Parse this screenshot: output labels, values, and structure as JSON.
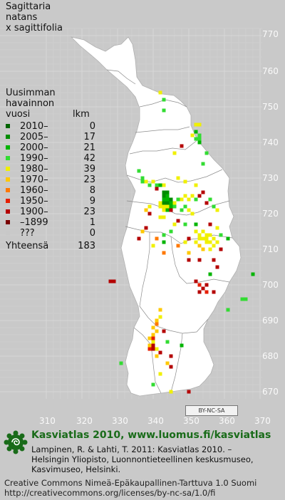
{
  "title": [
    "Sagittaria",
    "natans",
    "x sagittifolia"
  ],
  "legend": {
    "heading": [
      "Uusimman",
      "havainnon"
    ],
    "col_year": "vuosi",
    "col_count": "lkm",
    "rows": [
      {
        "label": "2010–",
        "count": "0",
        "color": "#006400"
      },
      {
        "label": "2005–",
        "count": "17",
        "color": "#008c00"
      },
      {
        "label": "2000–",
        "count": "21",
        "color": "#00b400"
      },
      {
        "label": "1990–",
        "count": "42",
        "color": "#32dc32"
      },
      {
        "label": "1980–",
        "count": "39",
        "color": "#f0f000"
      },
      {
        "label": "1970–",
        "count": "23",
        "color": "#ffc800"
      },
      {
        "label": "1960–",
        "count": "8",
        "color": "#ff7800"
      },
      {
        "label": "1950–",
        "count": "9",
        "color": "#e61e00"
      },
      {
        "label": "1900–",
        "count": "23",
        "color": "#b40000"
      },
      {
        "label": "–1899",
        "count": "1",
        "color": "#7a0000"
      },
      {
        "label": "???",
        "count": "0",
        "color": "#c8c8c8"
      }
    ],
    "total_label": "Yhteensä",
    "total_count": "183"
  },
  "axis": {
    "y_ticks": [
      "770",
      "760",
      "750",
      "740",
      "730",
      "720",
      "710",
      "700",
      "690",
      "680",
      "670"
    ],
    "x_ticks": [
      "310",
      "320",
      "330",
      "340",
      "350",
      "360",
      "370"
    ]
  },
  "license_badge": "BY-NC-SA",
  "footer": {
    "title": "Kasviatlas 2010, www.luomus.fi/kasviatlas",
    "citation": [
      "Lampinen, R. & Lahti, T. 2011: Kasviatlas 2010. –",
      "Helsingin Yliopisto, Luonnontieteellinen keskusmuseo,",
      "Kasvimuseo, Helsinki."
    ],
    "license": [
      "Creative Commons Nimeä-Epäkaupallinen-Tarttuva 1.0 Suomi",
      "http://creativecommons.org/licenses/by-nc-sa/1.0/fi"
    ]
  },
  "colors": {
    "land": "#ffffff",
    "sea": "#c9c9c9",
    "grid": "#e6e6e6",
    "province": "#8c8c8c",
    "brand": "#196b19"
  },
  "observations": [
    {
      "e": 342,
      "n": 754,
      "c": 4
    },
    {
      "e": 343,
      "n": 752,
      "c": 3
    },
    {
      "e": 343,
      "n": 749,
      "c": 3
    },
    {
      "e": 352,
      "n": 745,
      "c": 4
    },
    {
      "e": 353,
      "n": 745,
      "c": 4
    },
    {
      "e": 352,
      "n": 743,
      "c": 2
    },
    {
      "e": 353,
      "n": 742,
      "c": 3
    },
    {
      "e": 352,
      "n": 741,
      "c": 3
    },
    {
      "e": 353,
      "n": 741,
      "c": 3
    },
    {
      "e": 353,
      "n": 740,
      "c": 2
    },
    {
      "e": 351,
      "n": 742,
      "c": 4
    },
    {
      "e": 348,
      "n": 739,
      "c": 8
    },
    {
      "e": 346,
      "n": 737,
      "c": 4
    },
    {
      "e": 355,
      "n": 737,
      "c": 3
    },
    {
      "e": 354,
      "n": 734,
      "c": 3
    },
    {
      "e": 336,
      "n": 732,
      "c": 3
    },
    {
      "e": 337,
      "n": 730,
      "c": 3
    },
    {
      "e": 337,
      "n": 729,
      "c": 3
    },
    {
      "e": 338,
      "n": 729,
      "c": 4
    },
    {
      "e": 339,
      "n": 728,
      "c": 3
    },
    {
      "e": 340,
      "n": 729,
      "c": 4
    },
    {
      "e": 341,
      "n": 728,
      "c": 3
    },
    {
      "e": 342,
      "n": 728,
      "c": 2
    },
    {
      "e": 343,
      "n": 728,
      "c": 4
    },
    {
      "e": 347,
      "n": 730,
      "c": 4
    },
    {
      "e": 349,
      "n": 729,
      "c": 4
    },
    {
      "e": 352,
      "n": 728,
      "c": 4
    },
    {
      "e": 341,
      "n": 727,
      "c": 8
    },
    {
      "e": 343,
      "n": 726,
      "c": 1
    },
    {
      "e": 344,
      "n": 726,
      "c": 1
    },
    {
      "e": 343,
      "n": 725,
      "c": 1
    },
    {
      "e": 344,
      "n": 725,
      "c": 2
    },
    {
      "e": 343,
      "n": 724,
      "c": 2
    },
    {
      "e": 344,
      "n": 724,
      "c": 2
    },
    {
      "e": 345,
      "n": 724,
      "c": 1
    },
    {
      "e": 342,
      "n": 723,
      "c": 4
    },
    {
      "e": 343,
      "n": 723,
      "c": 1
    },
    {
      "e": 344,
      "n": 723,
      "c": 1
    },
    {
      "e": 345,
      "n": 723,
      "c": 2
    },
    {
      "e": 346,
      "n": 723,
      "c": 4
    },
    {
      "e": 342,
      "n": 722,
      "c": 4
    },
    {
      "e": 343,
      "n": 722,
      "c": 4
    },
    {
      "e": 344,
      "n": 722,
      "c": 4
    },
    {
      "e": 345,
      "n": 722,
      "c": 2
    },
    {
      "e": 346,
      "n": 722,
      "c": 3
    },
    {
      "e": 343,
      "n": 721,
      "c": 4
    },
    {
      "e": 344,
      "n": 721,
      "c": 2
    },
    {
      "e": 345,
      "n": 721,
      "c": 8
    },
    {
      "e": 339,
      "n": 722,
      "c": 4
    },
    {
      "e": 339,
      "n": 720,
      "c": 8
    },
    {
      "e": 342,
      "n": 719,
      "c": 4
    },
    {
      "e": 343,
      "n": 719,
      "c": 4
    },
    {
      "e": 338,
      "n": 721,
      "c": 5
    },
    {
      "e": 348,
      "n": 721,
      "c": 3
    },
    {
      "e": 349,
      "n": 722,
      "c": 3
    },
    {
      "e": 350,
      "n": 721,
      "c": 4
    },
    {
      "e": 351,
      "n": 720,
      "c": 4
    },
    {
      "e": 347,
      "n": 724,
      "c": 3
    },
    {
      "e": 348,
      "n": 724,
      "c": 4
    },
    {
      "e": 349,
      "n": 725,
      "c": 4
    },
    {
      "e": 350,
      "n": 724,
      "c": 4
    },
    {
      "e": 351,
      "n": 725,
      "c": 4
    },
    {
      "e": 352,
      "n": 724,
      "c": 3
    },
    {
      "e": 353,
      "n": 725,
      "c": 8
    },
    {
      "e": 354,
      "n": 726,
      "c": 8
    },
    {
      "e": 355,
      "n": 723,
      "c": 8
    },
    {
      "e": 356,
      "n": 724,
      "c": 3
    },
    {
      "e": 357,
      "n": 722,
      "c": 3
    },
    {
      "e": 358,
      "n": 721,
      "c": 4
    },
    {
      "e": 352,
      "n": 717,
      "c": 2
    },
    {
      "e": 356,
      "n": 717,
      "c": 8
    },
    {
      "e": 347,
      "n": 718,
      "c": 8
    },
    {
      "e": 346,
      "n": 717,
      "c": 4
    },
    {
      "e": 352,
      "n": 715,
      "c": 4
    },
    {
      "e": 353,
      "n": 714,
      "c": 4
    },
    {
      "e": 354,
      "n": 715,
      "c": 4
    },
    {
      "e": 355,
      "n": 714,
      "c": 4
    },
    {
      "e": 353,
      "n": 713,
      "c": 4
    },
    {
      "e": 354,
      "n": 713,
      "c": 4
    },
    {
      "e": 355,
      "n": 713,
      "c": 4
    },
    {
      "e": 356,
      "n": 714,
      "c": 4
    },
    {
      "e": 357,
      "n": 713,
      "c": 4
    },
    {
      "e": 355,
      "n": 712,
      "c": 4
    },
    {
      "e": 356,
      "n": 712,
      "c": 4
    },
    {
      "e": 352,
      "n": 712,
      "c": 4
    },
    {
      "e": 353,
      "n": 711,
      "c": 5
    },
    {
      "e": 354,
      "n": 710,
      "c": 5
    },
    {
      "e": 357,
      "n": 711,
      "c": 4
    },
    {
      "e": 358,
      "n": 712,
      "c": 4
    },
    {
      "e": 350,
      "n": 713,
      "c": 8
    },
    {
      "e": 349,
      "n": 712,
      "c": 4
    },
    {
      "e": 358,
      "n": 716,
      "c": 4
    },
    {
      "e": 359,
      "n": 714,
      "c": 3
    },
    {
      "e": 361,
      "n": 713,
      "c": 2
    },
    {
      "e": 359,
      "n": 710,
      "c": 8
    },
    {
      "e": 356,
      "n": 710,
      "c": 4
    },
    {
      "e": 350,
      "n": 709,
      "c": 5
    },
    {
      "e": 347,
      "n": 711,
      "c": 6
    },
    {
      "e": 345,
      "n": 715,
      "c": 3
    },
    {
      "e": 343,
      "n": 714,
      "c": 3
    },
    {
      "e": 341,
      "n": 713,
      "c": 6
    },
    {
      "e": 338,
      "n": 716,
      "c": 8
    },
    {
      "e": 337,
      "n": 715,
      "c": 5
    },
    {
      "e": 336,
      "n": 713,
      "c": 8
    },
    {
      "e": 340,
      "n": 711,
      "c": 4
    },
    {
      "e": 343,
      "n": 709,
      "c": 6
    },
    {
      "e": 343,
      "n": 712,
      "c": 2
    },
    {
      "e": 349,
      "n": 717,
      "c": 3
    },
    {
      "e": 357,
      "n": 707,
      "c": 8
    },
    {
      "e": 358,
      "n": 705,
      "c": 8
    },
    {
      "e": 353,
      "n": 707,
      "c": 8
    },
    {
      "e": 350,
      "n": 707,
      "c": 8
    },
    {
      "e": 356,
      "n": 703,
      "c": 2
    },
    {
      "e": 352,
      "n": 701,
      "c": 8
    },
    {
      "e": 353,
      "n": 700,
      "c": 7
    },
    {
      "e": 354,
      "n": 699,
      "c": 8
    },
    {
      "e": 355,
      "n": 698,
      "c": 7
    },
    {
      "e": 353,
      "n": 698,
      "c": 8
    },
    {
      "e": 355,
      "n": 700,
      "c": 8
    },
    {
      "e": 357,
      "n": 698,
      "c": 8
    },
    {
      "e": 368,
      "n": 703,
      "c": 2
    },
    {
      "e": 365,
      "n": 696,
      "c": 3
    },
    {
      "e": 366,
      "n": 696,
      "c": 3
    },
    {
      "e": 361,
      "n": 693,
      "c": 3
    },
    {
      "e": 328,
      "n": 701,
      "c": 8
    },
    {
      "e": 329,
      "n": 701,
      "c": 8
    },
    {
      "e": 342,
      "n": 693,
      "c": 5
    },
    {
      "e": 342,
      "n": 691,
      "c": 4
    },
    {
      "e": 341,
      "n": 690,
      "c": 5
    },
    {
      "e": 341,
      "n": 689,
      "c": 6
    },
    {
      "e": 340,
      "n": 688,
      "c": 5
    },
    {
      "e": 341,
      "n": 687,
      "c": 5
    },
    {
      "e": 340,
      "n": 686,
      "c": 5
    },
    {
      "e": 340,
      "n": 685,
      "c": 7
    },
    {
      "e": 339,
      "n": 685,
      "c": 5
    },
    {
      "e": 340,
      "n": 684,
      "c": 4
    },
    {
      "e": 339,
      "n": 683,
      "c": 5
    },
    {
      "e": 340,
      "n": 683,
      "c": 8
    },
    {
      "e": 339,
      "n": 682,
      "c": 7
    },
    {
      "e": 340,
      "n": 682,
      "c": 8
    },
    {
      "e": 341,
      "n": 682,
      "c": 4
    },
    {
      "e": 342,
      "n": 681,
      "c": 8
    },
    {
      "e": 341,
      "n": 680,
      "c": 5
    },
    {
      "e": 343,
      "n": 687,
      "c": 8
    },
    {
      "e": 344,
      "n": 684,
      "c": 3
    },
    {
      "e": 345,
      "n": 680,
      "c": 8
    },
    {
      "e": 344,
      "n": 678,
      "c": 5
    },
    {
      "e": 345,
      "n": 677,
      "c": 8
    },
    {
      "e": 342,
      "n": 675,
      "c": 4
    },
    {
      "e": 340,
      "n": 672,
      "c": 3
    },
    {
      "e": 345,
      "n": 670,
      "c": 4
    },
    {
      "e": 350,
      "n": 670,
      "c": 8
    },
    {
      "e": 348,
      "n": 683,
      "c": 2
    },
    {
      "e": 331,
      "n": 678,
      "c": 3
    }
  ]
}
